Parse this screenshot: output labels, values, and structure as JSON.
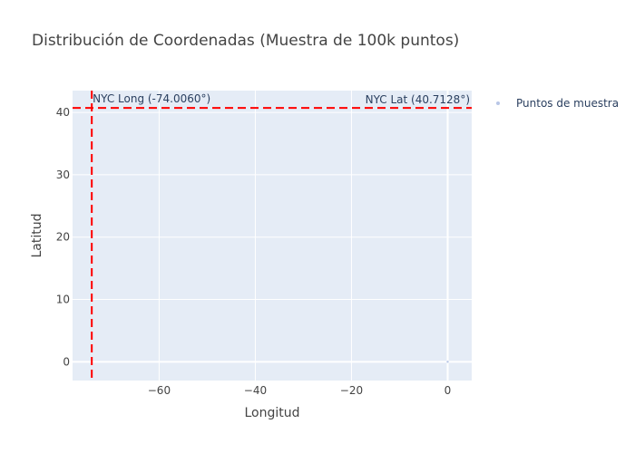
{
  "chart_data": {
    "type": "scatter",
    "title": "Distribución de Coordenadas (Muestra de 100k puntos)",
    "xlabel": "Longitud",
    "ylabel": "Latitud",
    "xlim": [
      -78,
      5
    ],
    "ylim": [
      -3,
      43.5
    ],
    "xticks": [
      -60,
      -40,
      -20,
      0
    ],
    "xtick_labels": [
      "−60",
      "−40",
      "−20",
      "0"
    ],
    "yticks": [
      0,
      10,
      20,
      30,
      40
    ],
    "ytick_labels": [
      "0",
      "10",
      "20",
      "30",
      "40"
    ],
    "grid": true,
    "legend_position": "top-right",
    "series": [
      {
        "name": "Puntos de muestra",
        "color": "#b8c6e6",
        "x": [
          0,
          -74.006
        ],
        "y": [
          0,
          40.7128
        ]
      }
    ],
    "reference_lines": [
      {
        "orientation": "vertical",
        "value": -74.006,
        "label": "NYC Long (-74.0060°)",
        "color": "#ff0000",
        "dash": "dashed"
      },
      {
        "orientation": "horizontal",
        "value": 40.7128,
        "label": "NYC Lat (40.7128°)",
        "color": "#ff0000",
        "dash": "dashed"
      }
    ],
    "colors": {
      "plot_bg": "#e5ecf6",
      "grid": "#ffffff",
      "reference": "#ff0000"
    }
  }
}
